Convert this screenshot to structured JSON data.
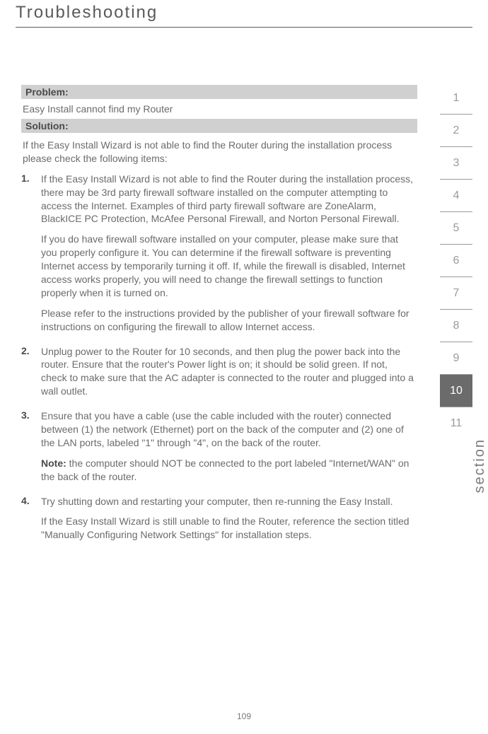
{
  "page": {
    "title": "Troubleshooting",
    "number": "109",
    "section_label": "section"
  },
  "labels": {
    "problem": "Problem:",
    "solution": "Solution:"
  },
  "problem_text": "Easy Install cannot find my Router",
  "intro": "If the Easy Install Wizard is not able to find the Router during the installation process please check the following items:",
  "items": [
    {
      "num": "1.",
      "paragraphs": [
        "If the Easy Install Wizard is not able to find the Router during the installation process, there may be 3rd party firewall software installed on the computer attempting to access the Internet. Examples of third party firewall software are ZoneAlarm, BlackICE PC Protection, McAfee Personal Firewall, and Norton Personal Firewall.",
        "If you do have firewall software installed on your computer, please make sure that you properly configure it.  You can determine if the firewall software is preventing Internet access by temporarily turning it off.  If, while the firewall is disabled, Internet access works properly, you will need to change the firewall settings to function properly when it is turned on.",
        "Please refer to the instructions provided by the publisher of your firewall software for instructions on configuring the firewall to allow Internet access."
      ]
    },
    {
      "num": "2.",
      "paragraphs": [
        "Unplug power to the Router for 10 seconds, and then plug the power back into the router.  Ensure that the router's Power light is on; it should be solid green.  If not, check to make sure that the AC adapter is connected to the router and plugged into a wall outlet."
      ]
    },
    {
      "num": "3.",
      "paragraphs": [
        "Ensure that you have a cable (use the cable included with the router) connected between (1) the network (Ethernet) port on the back of the computer and (2) one of the LAN ports, labeled \"1\" through \"4\", on the back of the router."
      ],
      "note_label": "Note:",
      "note": " the computer should NOT be connected to the port labeled \"Internet/WAN\" on the back of the router."
    },
    {
      "num": "4.",
      "paragraphs": [
        "Try shutting down and restarting your computer, then re-running the Easy Install.",
        "If the Easy Install Wizard is still unable to find the Router, reference the section titled \"Manually Configuring Network Settings\" for installation steps."
      ]
    }
  ],
  "tabs": [
    "1",
    "2",
    "3",
    "4",
    "5",
    "6",
    "7",
    "8",
    "9",
    "10",
    "11"
  ],
  "active_tab_index": 9,
  "colors": {
    "label_bg": "#d0d0d0",
    "text": "#6b6b6b",
    "heading": "#5a5a5a",
    "tab_border": "#9a9a9a",
    "active_tab_bg": "#6b6b6b"
  }
}
